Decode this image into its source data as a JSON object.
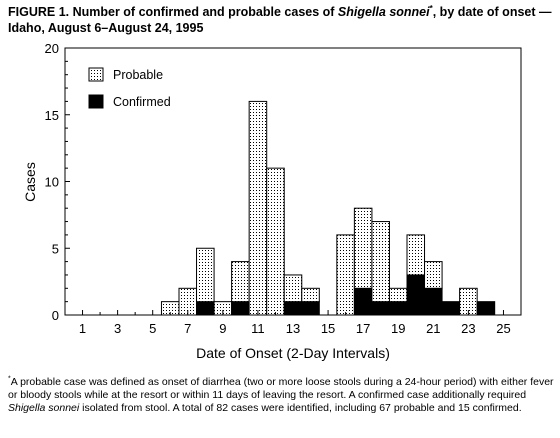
{
  "figure": {
    "title_prefix": "FIGURE 1. Number of confirmed and probable cases of ",
    "title_organism": "Shigella sonnei",
    "title_marker": "*",
    "title_suffix": ", by date of onset — Idaho, August 6–August 24, 1995",
    "footnote_marker": "*",
    "footnote_part1": "A probable case was defined as onset of diarrhea (two or more loose stools during a 24-hour period) with either fever or bloody stools while at the resort or within 11 days of leaving the resort. A confirmed case additionally required ",
    "footnote_organism": "Shigella sonnei",
    "footnote_part2": " isolated from stool. A total of 82 cases were identified, including 67 probable and 15 confirmed."
  },
  "chart_data": {
    "type": "bar",
    "stacked": true,
    "xlabel": "Date of Onset (2-Day Intervals)",
    "ylabel": "Cases",
    "ylim": [
      0,
      20
    ],
    "yticks": [
      0,
      5,
      10,
      15,
      20
    ],
    "x_tick_labels": [
      "1",
      "3",
      "5",
      "7",
      "9",
      "11",
      "13",
      "15",
      "17",
      "19",
      "21",
      "23",
      "25"
    ],
    "x": [
      6,
      7,
      8,
      9,
      10,
      11,
      12,
      13,
      14,
      16,
      17,
      18,
      19,
      20,
      21,
      22,
      23,
      24
    ],
    "series": [
      {
        "name": "Confirmed",
        "color": "#000000",
        "values": [
          0,
          0,
          1,
          0,
          1,
          0,
          0,
          1,
          1,
          0,
          2,
          1,
          1,
          3,
          2,
          1,
          0,
          1
        ]
      },
      {
        "name": "Probable",
        "color": "#ffffff",
        "values": [
          1,
          2,
          4,
          1,
          3,
          16,
          11,
          2,
          1,
          6,
          6,
          6,
          1,
          3,
          2,
          0,
          2,
          0
        ]
      }
    ],
    "legend_position": "top-left",
    "grid": false
  }
}
